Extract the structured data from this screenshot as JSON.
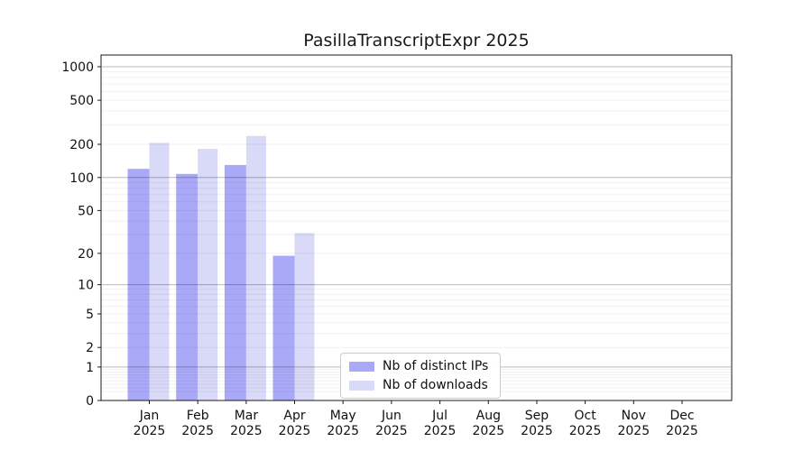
{
  "chart_data": {
    "type": "bar",
    "title": "PasillaTranscriptExpr 2025",
    "categories": [
      "Jan 2025",
      "Feb 2025",
      "Mar 2025",
      "Apr 2025",
      "May 2025",
      "Jun 2025",
      "Jul 2025",
      "Aug 2025",
      "Sep 2025",
      "Oct 2025",
      "Nov 2025",
      "Dec 2025"
    ],
    "series": [
      {
        "name": "Nb of distinct IPs",
        "color": "#a9a9f8",
        "values": [
          120,
          108,
          130,
          19,
          0,
          0,
          0,
          0,
          0,
          0,
          0,
          0
        ]
      },
      {
        "name": "Nb of downloads",
        "color": "#d9d9f8",
        "values": [
          206,
          182,
          238,
          31,
          0,
          0,
          0,
          0,
          0,
          0,
          0,
          0
        ]
      }
    ],
    "xlabel": "",
    "ylabel": "",
    "yscale": "log10(1+x)",
    "yticks": [
      0,
      1,
      2,
      5,
      10,
      20,
      50,
      100,
      200,
      500,
      1000
    ],
    "ylim": [
      0,
      1270
    ],
    "grid": "on",
    "legend_position": "lower-center-left-inside",
    "colors": {
      "major_grid": "rgba(0,0,0,0.28)",
      "minor_grid": "rgba(0,0,0,0.06)",
      "spine": "#1a1a1a",
      "background": "#ffffff"
    }
  }
}
